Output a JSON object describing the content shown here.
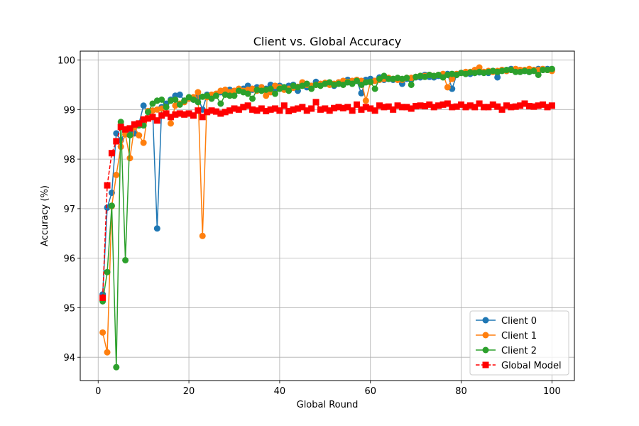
{
  "chart_data": {
    "type": "line",
    "title": "Client vs. Global Accuracy",
    "xlabel": "Global Round",
    "ylabel": "Accuracy (%)",
    "xlim": [
      -3.95,
      104.95
    ],
    "ylim": [
      93.53,
      100.18
    ],
    "xticks": [
      0,
      20,
      40,
      60,
      80,
      100
    ],
    "yticks": [
      94,
      95,
      96,
      97,
      98,
      99,
      100
    ],
    "grid": true,
    "legend_position": "lower right",
    "x": [
      1,
      2,
      3,
      4,
      5,
      6,
      7,
      8,
      9,
      10,
      11,
      12,
      13,
      14,
      15,
      16,
      17,
      18,
      19,
      20,
      21,
      22,
      23,
      24,
      25,
      26,
      27,
      28,
      29,
      30,
      31,
      32,
      33,
      34,
      35,
      36,
      37,
      38,
      39,
      40,
      41,
      42,
      43,
      44,
      45,
      46,
      47,
      48,
      49,
      50,
      51,
      52,
      53,
      54,
      55,
      56,
      57,
      58,
      59,
      60,
      61,
      62,
      63,
      64,
      65,
      66,
      67,
      68,
      69,
      70,
      71,
      72,
      73,
      74,
      75,
      76,
      77,
      78,
      79,
      80,
      81,
      82,
      83,
      84,
      85,
      86,
      87,
      88,
      89,
      90,
      91,
      92,
      93,
      94,
      95,
      96,
      97,
      98,
      99,
      100
    ],
    "series": [
      {
        "name": "Client 0",
        "color": "#1f77b4",
        "marker": "circle",
        "line_style": "solid",
        "values": [
          95.27,
          97.02,
          97.32,
          98.52,
          98.38,
          98.55,
          98.6,
          98.52,
          98.72,
          99.08,
          98.95,
          98.98,
          96.6,
          99.05,
          99.12,
          99.2,
          99.28,
          99.3,
          99.18,
          99.22,
          99.2,
          99.25,
          99.0,
          99.3,
          99.28,
          99.3,
          99.35,
          99.38,
          99.4,
          99.35,
          99.4,
          99.42,
          99.48,
          99.4,
          99.45,
          99.45,
          99.42,
          99.5,
          99.42,
          99.48,
          99.45,
          99.48,
          99.5,
          99.38,
          99.52,
          99.45,
          99.48,
          99.56,
          99.5,
          99.52,
          99.52,
          99.48,
          99.55,
          99.55,
          99.6,
          99.55,
          99.58,
          99.33,
          99.6,
          99.62,
          99.58,
          99.65,
          99.6,
          99.62,
          99.6,
          99.62,
          99.52,
          99.62,
          99.62,
          99.65,
          99.65,
          99.7,
          99.66,
          99.65,
          99.68,
          99.68,
          99.72,
          99.42,
          99.7,
          99.74,
          99.72,
          99.72,
          99.74,
          99.75,
          99.76,
          99.74,
          99.78,
          99.65,
          99.8,
          99.78,
          99.82,
          99.78,
          99.8,
          99.78,
          99.76,
          99.8,
          99.82,
          99.8,
          99.82,
          99.8
        ]
      },
      {
        "name": "Client 1",
        "color": "#ff7f0e",
        "marker": "circle",
        "line_style": "solid",
        "values": [
          94.5,
          94.1,
          97.05,
          97.68,
          98.25,
          98.5,
          98.02,
          98.65,
          98.48,
          98.33,
          98.97,
          98.98,
          99.0,
          99.02,
          99.05,
          98.72,
          99.08,
          99.12,
          99.15,
          99.22,
          99.25,
          99.35,
          96.45,
          99.25,
          99.3,
          99.32,
          99.38,
          99.4,
          99.35,
          99.38,
          99.42,
          99.38,
          99.4,
          99.42,
          99.38,
          99.45,
          99.28,
          99.35,
          99.48,
          99.45,
          99.4,
          99.42,
          99.44,
          99.46,
          99.55,
          99.5,
          99.48,
          99.5,
          99.52,
          99.54,
          99.5,
          99.52,
          99.55,
          99.58,
          99.56,
          99.58,
          99.6,
          99.58,
          99.18,
          99.55,
          99.58,
          99.6,
          99.62,
          99.64,
          99.62,
          99.6,
          99.6,
          99.64,
          99.64,
          99.66,
          99.68,
          99.68,
          99.7,
          99.68,
          99.7,
          99.72,
          99.45,
          99.62,
          99.72,
          99.74,
          99.76,
          99.76,
          99.8,
          99.85,
          99.76,
          99.78,
          99.76,
          99.78,
          99.8,
          99.78,
          99.8,
          99.82,
          99.8,
          99.8,
          99.82,
          99.8,
          99.8,
          99.82,
          99.8,
          99.78
        ]
      },
      {
        "name": "Client 2",
        "color": "#2ca02c",
        "marker": "circle",
        "line_style": "solid",
        "values": [
          95.13,
          95.72,
          97.06,
          93.8,
          98.75,
          95.96,
          98.48,
          98.7,
          98.68,
          98.68,
          98.95,
          99.12,
          99.18,
          99.2,
          99.05,
          99.18,
          99.2,
          99.1,
          99.18,
          99.25,
          99.2,
          99.15,
          99.26,
          99.28,
          99.22,
          99.28,
          99.12,
          99.3,
          99.28,
          99.28,
          99.38,
          99.35,
          99.32,
          99.22,
          99.4,
          99.38,
          99.4,
          99.42,
          99.32,
          99.42,
          99.45,
          99.38,
          99.48,
          99.45,
          99.48,
          99.52,
          99.42,
          99.5,
          99.48,
          99.52,
          99.55,
          99.5,
          99.52,
          99.5,
          99.55,
          99.52,
          99.58,
          99.5,
          99.55,
          99.56,
          99.42,
          99.62,
          99.68,
          99.62,
          99.62,
          99.64,
          99.62,
          99.64,
          99.5,
          99.66,
          99.68,
          99.66,
          99.7,
          99.68,
          99.7,
          99.65,
          99.7,
          99.72,
          99.7,
          99.74,
          99.72,
          99.75,
          99.74,
          99.76,
          99.74,
          99.76,
          99.78,
          99.76,
          99.78,
          99.8,
          99.8,
          99.76,
          99.76,
          99.78,
          99.76,
          99.78,
          99.7,
          99.8,
          99.8,
          99.82
        ]
      },
      {
        "name": "Global Model",
        "color": "#ff0000",
        "marker": "square",
        "line_style": "dashed",
        "values": [
          95.2,
          97.47,
          98.12,
          98.36,
          98.65,
          98.6,
          98.62,
          98.7,
          98.72,
          98.8,
          98.82,
          98.85,
          98.78,
          98.88,
          98.92,
          98.85,
          98.9,
          98.92,
          98.9,
          98.92,
          98.88,
          98.98,
          98.85,
          98.95,
          98.98,
          98.96,
          98.92,
          98.95,
          98.98,
          99.02,
          99.0,
          99.05,
          99.08,
          99.0,
          98.98,
          99.02,
          98.97,
          99.0,
          99.02,
          98.98,
          99.08,
          98.97,
          99.0,
          99.02,
          99.05,
          98.98,
          99.02,
          99.15,
          99.0,
          99.02,
          98.98,
          99.03,
          99.05,
          99.03,
          99.05,
          98.98,
          99.1,
          99.0,
          99.05,
          99.02,
          98.98,
          99.08,
          99.05,
          99.06,
          99.0,
          99.08,
          99.05,
          99.05,
          99.02,
          99.07,
          99.08,
          99.07,
          99.1,
          99.05,
          99.08,
          99.1,
          99.12,
          99.05,
          99.06,
          99.1,
          99.05,
          99.08,
          99.05,
          99.12,
          99.05,
          99.05,
          99.1,
          99.06,
          99.0,
          99.08,
          99.05,
          99.06,
          99.08,
          99.12,
          99.07,
          99.06,
          99.08,
          99.1,
          99.05,
          99.08
        ]
      }
    ]
  }
}
